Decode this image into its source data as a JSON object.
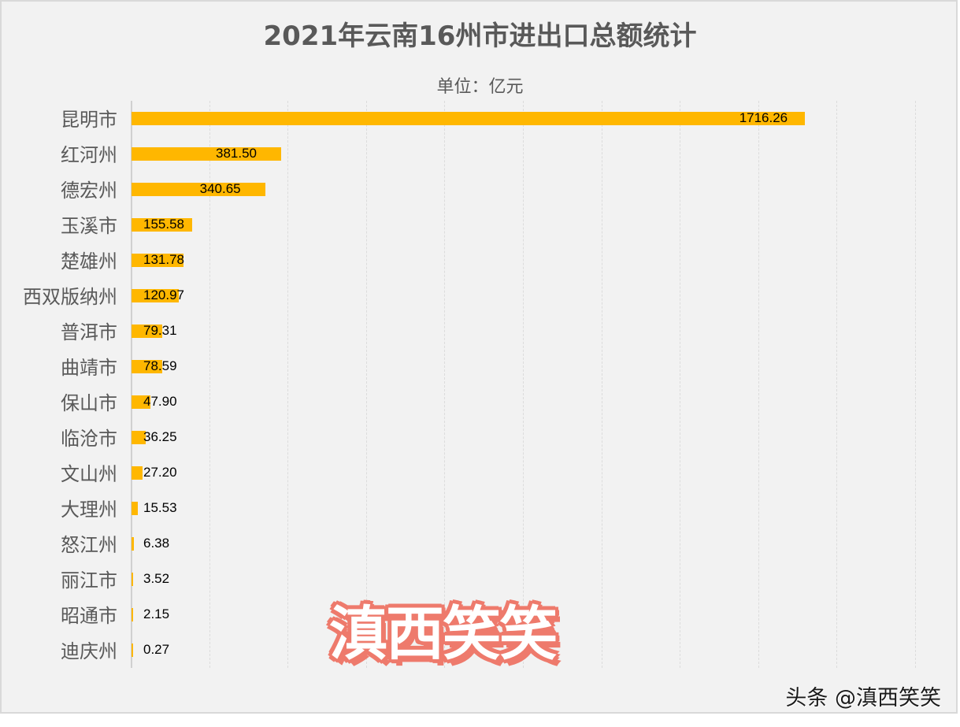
{
  "title": "2021年云南16州市进出口总额统计",
  "subtitle": "单位：亿元",
  "colors": {
    "bar": "#ffb700",
    "background": "#f2f2f2",
    "title": "#595959",
    "watermark_stroke": "#ee7a6c"
  },
  "watermark": "滇西笑笑",
  "credit": "头条 @滇西笑笑",
  "chart_data": {
    "type": "bar",
    "orientation": "horizontal",
    "title": "2021年云南16州市进出口总额统计",
    "subtitle": "单位：亿元",
    "xlabel": "",
    "ylabel": "",
    "xlim": [
      0,
      2000
    ],
    "grid": true,
    "legend": null,
    "categories": [
      "昆明市",
      "红河州",
      "德宏州",
      "玉溪市",
      "楚雄州",
      "西双版纳州",
      "普洱市",
      "曲靖市",
      "保山市",
      "临沧市",
      "文山州",
      "大理州",
      "怒江州",
      "丽江市",
      "昭通市",
      "迪庆州"
    ],
    "values": [
      1716.26,
      381.5,
      340.65,
      155.58,
      131.78,
      120.97,
      79.31,
      78.59,
      47.9,
      36.25,
      27.2,
      15.53,
      6.38,
      3.52,
      2.15,
      0.27
    ],
    "value_labels": [
      "1716.26",
      "381.50",
      "340.65",
      "155.58",
      "131.78",
      "120.97",
      "79.31",
      "78.59",
      "47.90",
      "36.25",
      "27.20",
      "15.53",
      "6.38",
      "3.52",
      "2.15",
      "0.27"
    ]
  }
}
